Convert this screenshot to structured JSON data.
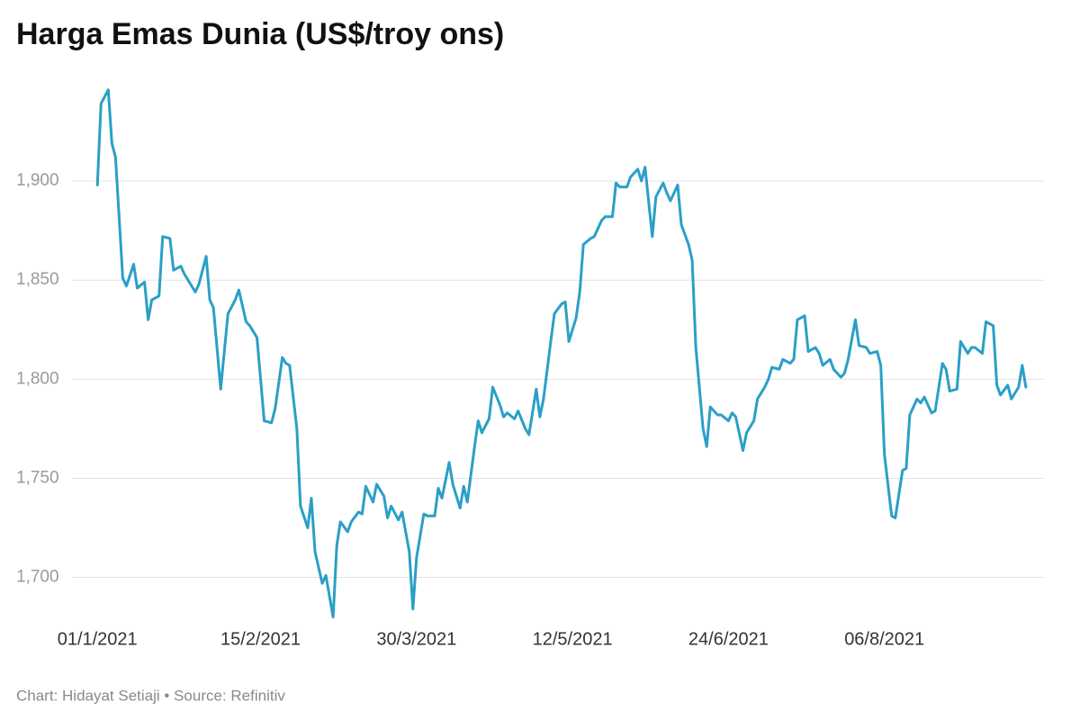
{
  "chart_data": {
    "type": "line",
    "title": "Harga Emas Dunia (US$/troy ons)",
    "source": "Chart: Hidayat Setiaji • Source: Refinitiv",
    "color": "#2b9fc6",
    "grid": true,
    "x": [
      "2021-01-01",
      "2021-01-02",
      "2021-01-04",
      "2021-01-05",
      "2021-01-06",
      "2021-01-08",
      "2021-01-09",
      "2021-01-11",
      "2021-01-12",
      "2021-01-14",
      "2021-01-15",
      "2021-01-16",
      "2021-01-18",
      "2021-01-19",
      "2021-01-21",
      "2021-01-22",
      "2021-01-24",
      "2021-01-25",
      "2021-01-27",
      "2021-01-28",
      "2021-01-29",
      "2021-01-31",
      "2021-02-01",
      "2021-02-02",
      "2021-02-04",
      "2021-02-05",
      "2021-02-06",
      "2021-02-08",
      "2021-02-09",
      "2021-02-11",
      "2021-02-12",
      "2021-02-14",
      "2021-02-15",
      "2021-02-16",
      "2021-02-18",
      "2021-02-19",
      "2021-02-21",
      "2021-02-22",
      "2021-02-23",
      "2021-02-25",
      "2021-02-26",
      "2021-02-28",
      "2021-03-01",
      "2021-03-02",
      "2021-03-04",
      "2021-03-05",
      "2021-03-07",
      "2021-03-08",
      "2021-03-09",
      "2021-03-11",
      "2021-03-12",
      "2021-03-14",
      "2021-03-15",
      "2021-03-16",
      "2021-03-18",
      "2021-03-19",
      "2021-03-21",
      "2021-03-22",
      "2021-03-23",
      "2021-03-25",
      "2021-03-26",
      "2021-03-28",
      "2021-03-29",
      "2021-03-30",
      "2021-04-01",
      "2021-04-02",
      "2021-04-04",
      "2021-04-05",
      "2021-04-06",
      "2021-04-08",
      "2021-04-09",
      "2021-04-11",
      "2021-04-12",
      "2021-04-13",
      "2021-04-15",
      "2021-04-16",
      "2021-04-17",
      "2021-04-19",
      "2021-04-20",
      "2021-04-22",
      "2021-04-23",
      "2021-04-24",
      "2021-04-26",
      "2021-04-27",
      "2021-04-29",
      "2021-04-30",
      "2021-05-02",
      "2021-05-03",
      "2021-05-04",
      "2021-05-06",
      "2021-05-07",
      "2021-05-09",
      "2021-05-10",
      "2021-05-11",
      "2021-05-13",
      "2021-05-14",
      "2021-05-15",
      "2021-05-17",
      "2021-05-18",
      "2021-05-20",
      "2021-05-21",
      "2021-05-23",
      "2021-05-24",
      "2021-05-25",
      "2021-05-27",
      "2021-05-28",
      "2021-05-30",
      "2021-05-31",
      "2021-06-01",
      "2021-06-03",
      "2021-06-04",
      "2021-06-06",
      "2021-06-07",
      "2021-06-08",
      "2021-06-10",
      "2021-06-11",
      "2021-06-13",
      "2021-06-14",
      "2021-06-15",
      "2021-06-17",
      "2021-06-18",
      "2021-06-19",
      "2021-06-21",
      "2021-06-22",
      "2021-06-24",
      "2021-06-25",
      "2021-06-26",
      "2021-06-28",
      "2021-06-29",
      "2021-07-01",
      "2021-07-02",
      "2021-07-04",
      "2021-07-05",
      "2021-07-06",
      "2021-07-08",
      "2021-07-09",
      "2021-07-11",
      "2021-07-12",
      "2021-07-13",
      "2021-07-15",
      "2021-07-16",
      "2021-07-18",
      "2021-07-19",
      "2021-07-20",
      "2021-07-22",
      "2021-07-23",
      "2021-07-25",
      "2021-07-26",
      "2021-07-27",
      "2021-07-29",
      "2021-07-30",
      "2021-08-01",
      "2021-08-02",
      "2021-08-04",
      "2021-08-05",
      "2021-08-06",
      "2021-08-08",
      "2021-08-09",
      "2021-08-11",
      "2021-08-12",
      "2021-08-13",
      "2021-08-15",
      "2021-08-16",
      "2021-08-17",
      "2021-08-19",
      "2021-08-20",
      "2021-08-22",
      "2021-08-23",
      "2021-08-24",
      "2021-08-26",
      "2021-08-27",
      "2021-08-29",
      "2021-08-30",
      "2021-08-31",
      "2021-09-02",
      "2021-09-03",
      "2021-09-05",
      "2021-09-06",
      "2021-09-07",
      "2021-09-09",
      "2021-09-10",
      "2021-09-12",
      "2021-09-13",
      "2021-09-14"
    ],
    "values": [
      1898,
      1939,
      1946,
      1919,
      1912,
      1851,
      1847,
      1858,
      1846,
      1849,
      1830,
      1840,
      1842,
      1872,
      1871,
      1855,
      1857,
      1853,
      1847,
      1844,
      1848,
      1862,
      1840,
      1836,
      1795,
      1814,
      1833,
      1840,
      1845,
      1829,
      1827,
      1821,
      1800,
      1779,
      1778,
      1785,
      1811,
      1808,
      1807,
      1775,
      1736,
      1725,
      1740,
      1713,
      1697,
      1701,
      1680,
      1716,
      1728,
      1723,
      1728,
      1733,
      1732,
      1746,
      1738,
      1747,
      1741,
      1730,
      1736,
      1729,
      1733,
      1713,
      1684,
      1710,
      1732,
      1731,
      1731,
      1745,
      1740,
      1758,
      1747,
      1735,
      1746,
      1738,
      1766,
      1779,
      1773,
      1780,
      1796,
      1787,
      1781,
      1783,
      1780,
      1784,
      1775,
      1772,
      1795,
      1781,
      1790,
      1819,
      1833,
      1838,
      1839,
      1819,
      1831,
      1844,
      1868,
      1871,
      1872,
      1880,
      1882,
      1882,
      1899,
      1897,
      1897,
      1902,
      1906,
      1900,
      1907,
      1872,
      1892,
      1899,
      1894,
      1890,
      1898,
      1878,
      1868,
      1860,
      1816,
      1775,
      1766,
      1786,
      1782,
      1782,
      1779,
      1783,
      1781,
      1764,
      1773,
      1779,
      1790,
      1796,
      1800,
      1806,
      1805,
      1810,
      1808,
      1810,
      1830,
      1832,
      1814,
      1816,
      1813,
      1807,
      1810,
      1805,
      1801,
      1803,
      1810,
      1830,
      1817,
      1816,
      1813,
      1814,
      1807,
      1762,
      1731,
      1730,
      1754,
      1755,
      1782,
      1790,
      1788,
      1791,
      1783,
      1784,
      1808,
      1805,
      1794,
      1795,
      1819,
      1813,
      1816,
      1816,
      1813,
      1829,
      1827,
      1797,
      1792,
      1797,
      1790,
      1796,
      1807,
      1796
    ],
    "xlim": [
      "2020-12-25",
      "2021-09-19"
    ],
    "xticks": [
      {
        "value": "2021-01-01",
        "label": "01/1/2021"
      },
      {
        "value": "2021-02-15",
        "label": "15/2/2021"
      },
      {
        "value": "2021-03-30",
        "label": "30/3/2021"
      },
      {
        "value": "2021-05-12",
        "label": "12/5/2021"
      },
      {
        "value": "2021-06-24",
        "label": "24/6/2021"
      },
      {
        "value": "2021-08-06",
        "label": "06/8/2021"
      }
    ],
    "ylim": [
      1678,
      1955
    ],
    "yticks": [
      {
        "value": 1700,
        "label": "1,700"
      },
      {
        "value": 1750,
        "label": "1,750"
      },
      {
        "value": 1800,
        "label": "1,800"
      },
      {
        "value": 1850,
        "label": "1,850"
      },
      {
        "value": 1900,
        "label": "1,900"
      }
    ]
  }
}
